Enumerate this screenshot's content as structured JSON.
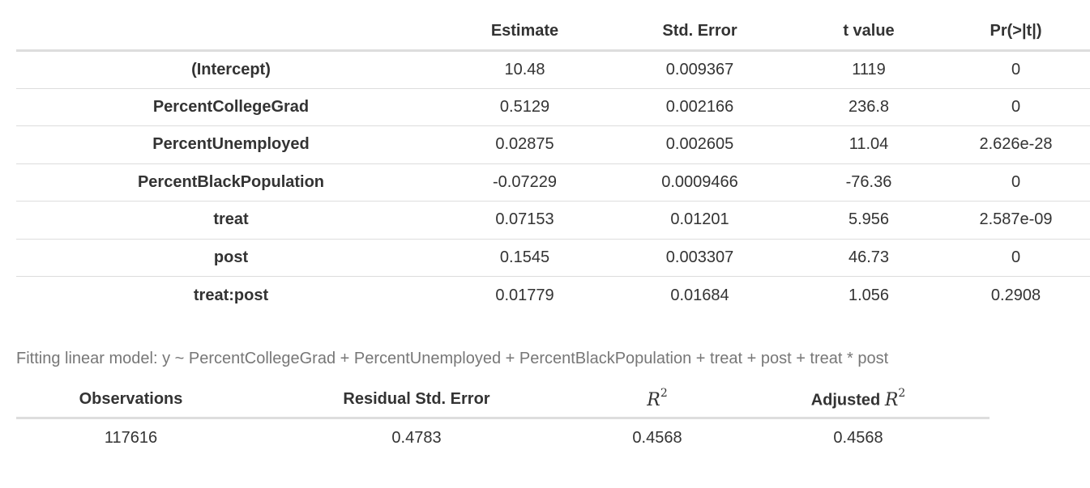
{
  "coefficients": {
    "headers": [
      "",
      "Estimate",
      "Std. Error",
      "t value",
      "Pr(>|t|)"
    ],
    "rows": [
      {
        "term": "(Intercept)",
        "estimate": "10.48",
        "std_error": "0.009367",
        "t_value": "1119",
        "p_value": "0"
      },
      {
        "term": "PercentCollegeGrad",
        "estimate": "0.5129",
        "std_error": "0.002166",
        "t_value": "236.8",
        "p_value": "0"
      },
      {
        "term": "PercentUnemployed",
        "estimate": "0.02875",
        "std_error": "0.002605",
        "t_value": "11.04",
        "p_value": "2.626e-28"
      },
      {
        "term": "PercentBlackPopulation",
        "estimate": "-0.07229",
        "std_error": "0.0009466",
        "t_value": "-76.36",
        "p_value": "0"
      },
      {
        "term": "treat",
        "estimate": "0.07153",
        "std_error": "0.01201",
        "t_value": "5.956",
        "p_value": "2.587e-09"
      },
      {
        "term": "post",
        "estimate": "0.1545",
        "std_error": "0.003307",
        "t_value": "46.73",
        "p_value": "0"
      },
      {
        "term": "treat:post",
        "estimate": "0.01779",
        "std_error": "0.01684",
        "t_value": "1.056",
        "p_value": "0.2908"
      }
    ]
  },
  "caption": "Fitting linear model: y ~ PercentCollegeGrad + PercentUnemployed + PercentBlackPopulation + treat + post + treat * post",
  "fit": {
    "headers": {
      "observations": "Observations",
      "residual_se": "Residual Std. Error",
      "r2_symbol": "R",
      "r2_exponent": "2",
      "adj_prefix": "Adjusted",
      "adj_symbol": "R",
      "adj_exponent": "2"
    },
    "values": {
      "observations": "117616",
      "residual_se": "0.4783",
      "r2": "0.4568",
      "adj_r2": "0.4568"
    }
  },
  "colors": {
    "text": "#333333",
    "caption": "#777777",
    "rule": "#dddddd"
  }
}
